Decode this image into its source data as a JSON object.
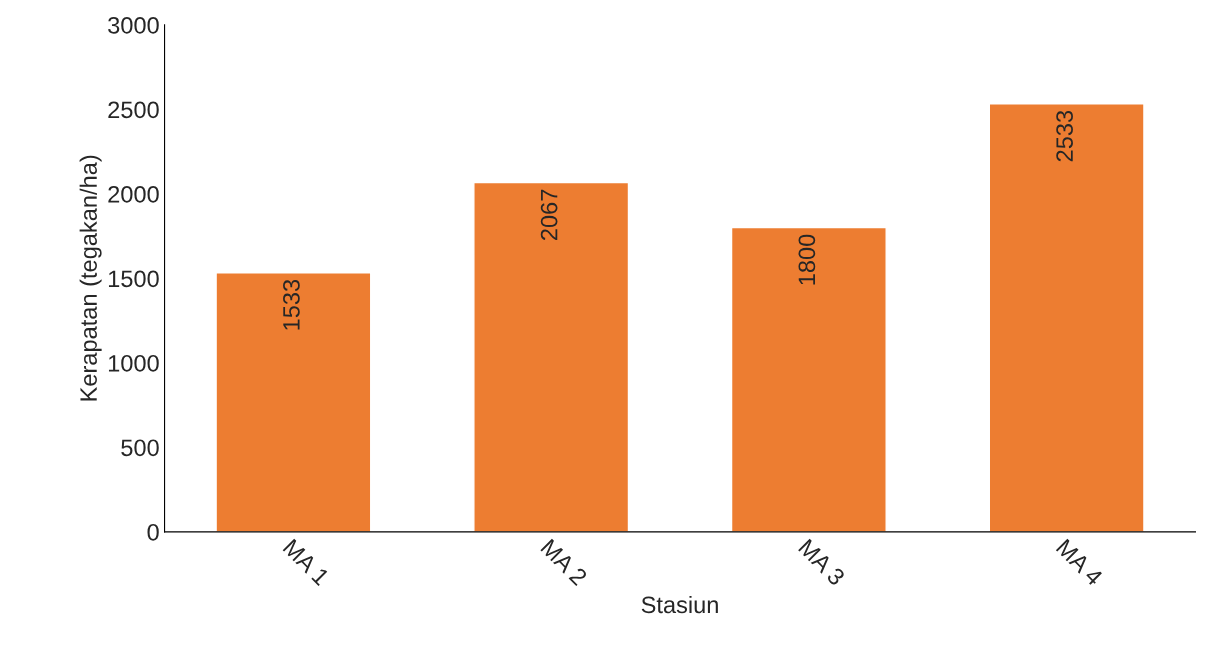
{
  "chart_data": {
    "type": "bar",
    "xlabel": "Stasiun",
    "ylabel": "Kerapatan (tegakan/ha)",
    "categories": [
      "MA 1",
      "MA 2",
      "MA 3",
      "MA 4"
    ],
    "values": [
      1533,
      2067,
      1800,
      2533
    ],
    "color": "#ed7d31",
    "ylim": [
      0,
      3000
    ],
    "yticks": [
      0,
      500,
      1000,
      1500,
      2000,
      2500,
      3000
    ],
    "data_labels": true,
    "grid": false
  }
}
